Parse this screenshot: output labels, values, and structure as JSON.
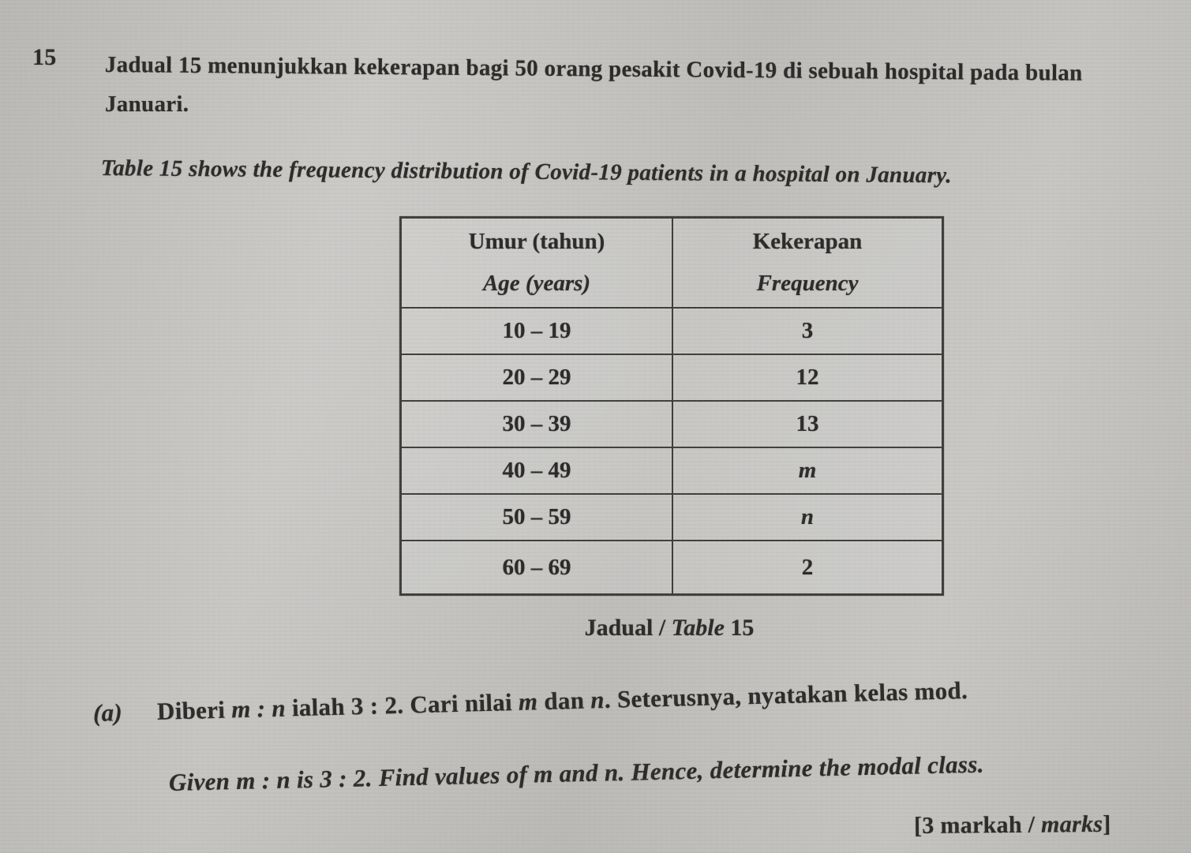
{
  "question": {
    "number": "15",
    "intro_ms_line1": "Jadual 15 menunjukkan kekerapan bagi 50 orang pesakit Covid-19 di sebuah hospital pada bulan",
    "intro_ms_line2": "Januari.",
    "intro_en": "Table 15 shows the frequency distribution of Covid-19 patients in a hospital on January."
  },
  "table": {
    "header": {
      "col1_ms": "Umur (tahun)",
      "col1_en": "Age (years)",
      "col2_ms": "Kekerapan",
      "col2_en": "Frequency"
    },
    "rows": [
      {
        "age": "10 – 19",
        "freq": "3"
      },
      {
        "age": "20 – 29",
        "freq": "12"
      },
      {
        "age": "30 – 39",
        "freq": "13"
      },
      {
        "age": "40 – 49",
        "freq": "m"
      },
      {
        "age": "50 – 59",
        "freq": "n"
      },
      {
        "age": "60 – 69",
        "freq": "2"
      }
    ],
    "caption": {
      "ms": "Jadual / ",
      "en": "Table",
      "number": " 15"
    }
  },
  "part_a": {
    "label": "(a)",
    "ms_segments": [
      "Diberi ",
      "m : n",
      " ialah 3 : 2. Cari nilai ",
      "m",
      " dan ",
      "n",
      ". Seterusnya, nyatakan kelas mod."
    ],
    "en": "Given m : n is 3 : 2. Find values of m and n. Hence, determine the modal class.",
    "marks_segments": [
      "[3 markah / ",
      "marks",
      "]"
    ]
  }
}
